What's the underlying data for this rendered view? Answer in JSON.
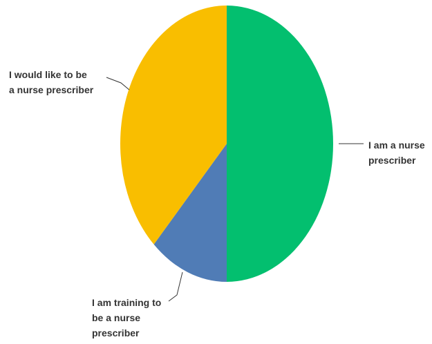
{
  "chart_data": {
    "type": "pie",
    "slices": [
      {
        "label": [
          "I am a nurse",
          "prescriber"
        ],
        "value": 50,
        "color": "#03bf6f"
      },
      {
        "label": [
          "I am training to",
          "be a nurse",
          "prescriber"
        ],
        "value": 12,
        "color": "#507cb6"
      },
      {
        "label": [
          "I would like to be",
          "a nurse prescriber"
        ],
        "value": 38,
        "color": "#f9be00"
      }
    ]
  }
}
